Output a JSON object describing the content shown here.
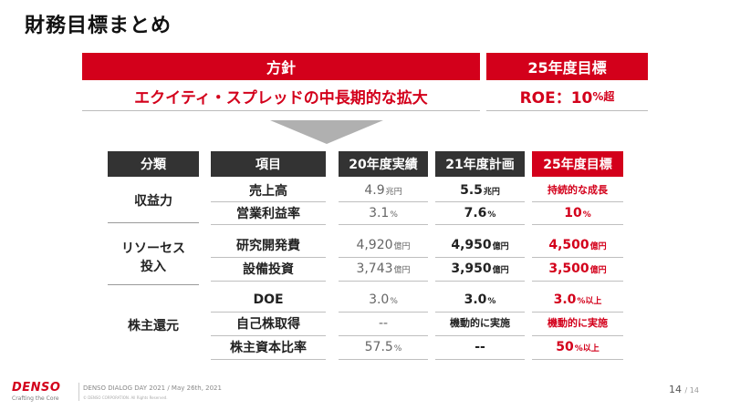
{
  "title": "財務目標まとめ",
  "policy": {
    "header": "方針",
    "text": "エクイティ・スプレッドの中長期的な拡大"
  },
  "target": {
    "header": "25年度目標",
    "roe_label": "ROE：10",
    "roe_unit": "%超"
  },
  "columns": {
    "category": "分類",
    "item": "項目",
    "fy20": "20年度実績",
    "fy21": "21年度計画",
    "fy25": "25年度目標"
  },
  "categories": {
    "profit": "収益力",
    "resources_line1": "リソーセス",
    "resources_line2": "投入",
    "returns": "株主還元"
  },
  "rows": [
    {
      "item": "売上高",
      "fy20": "4.9",
      "fy20_unit": "兆円",
      "fy21": "5.5",
      "fy21_unit": "兆円",
      "fy25": "持続的な成長",
      "fy25_unit": ""
    },
    {
      "item": "営業利益率",
      "fy20": "3.1",
      "fy20_unit": "%",
      "fy21": "7.6",
      "fy21_unit": "%",
      "fy25": "10",
      "fy25_unit": "%"
    },
    {
      "item": "研究開発費",
      "fy20": "4,920",
      "fy20_unit": "億円",
      "fy21": "4,950",
      "fy21_unit": "億円",
      "fy25": "4,500",
      "fy25_unit": "億円"
    },
    {
      "item": "設備投資",
      "fy20": "3,743",
      "fy20_unit": "億円",
      "fy21": "3,950",
      "fy21_unit": "億円",
      "fy25": "3,500",
      "fy25_unit": "億円"
    },
    {
      "item": "DOE",
      "fy20": "3.0",
      "fy20_unit": "%",
      "fy21": "3.0",
      "fy21_unit": "%",
      "fy25": "3.0",
      "fy25_unit": "%以上"
    },
    {
      "item": "自己株取得",
      "fy20": "--",
      "fy20_unit": "",
      "fy21": "機動的に実施",
      "fy21_unit": "",
      "fy25": "機動的に実施",
      "fy25_unit": ""
    },
    {
      "item": "株主資本比率",
      "fy20": "57.5",
      "fy20_unit": "%",
      "fy21": "--",
      "fy21_unit": "",
      "fy25": "50",
      "fy25_unit": "%以上"
    }
  ],
  "footer": {
    "logo": "DENSO",
    "tagline": "Crafting the Core",
    "event": "DENSO DIALOG DAY 2021 / May 26th, 2021",
    "copyright": "© DENSO CORPORATION. All Rights Reserved.",
    "page": "14",
    "page_total": "/ 14"
  },
  "colors": {
    "accent": "#d3001b",
    "header_dark": "#333333"
  }
}
